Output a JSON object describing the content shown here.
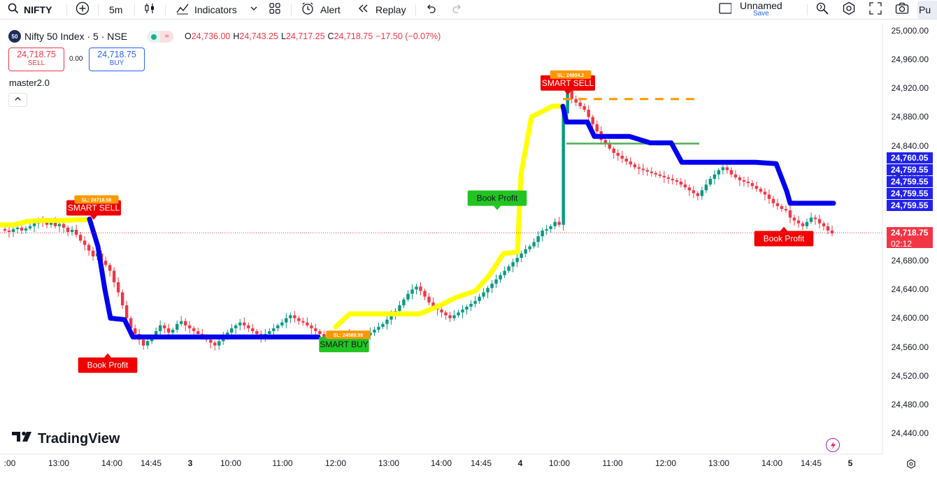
{
  "toolbar": {
    "symbol": "NIFTY",
    "interval": "5m",
    "indicators_label": "Indicators",
    "alert_label": "Alert",
    "replay_label": "Replay",
    "layout_name": "Unnamed",
    "save_label": "Save",
    "publish_label": "Pu"
  },
  "legend": {
    "badge": "50",
    "title": "Nifty 50 Index · 5 · NSE",
    "ohlc": [
      {
        "k": "O",
        "v": "24,736.00"
      },
      {
        "k": "H",
        "v": "24,743.25"
      },
      {
        "k": "L",
        "v": "24,717.25"
      },
      {
        "k": "C",
        "v": "24,718.75"
      }
    ],
    "change": "−17.50 (−0.07%)",
    "sell_price": "24,718.75",
    "sell_label": "SELL",
    "spread": "0.00",
    "buy_price": "24,718.75",
    "buy_label": "BUY",
    "indicator": "master2.0"
  },
  "brand": "TradingView",
  "colors": {
    "up": "#089981",
    "down": "#f23645",
    "trail_long": "#ffff00",
    "trail_short": "#0000ee",
    "accent": "#2962ff"
  },
  "chart_data": {
    "type": "candlestick",
    "ylim": [
      24410,
      25005
    ],
    "y_ticks": [
      "25,000.00",
      "24,960.00",
      "24,920.00",
      "24,880.00",
      "24,840.00",
      "24,800.00",
      "24,760.00",
      "24,720.00",
      "24,680.00",
      "24,640.00",
      "24,600.00",
      "24,560.00",
      "24,520.00",
      "24,480.00",
      "24,440.00"
    ],
    "y_tick_values": [
      25000,
      24960,
      24920,
      24880,
      24840,
      24800,
      24760,
      24720,
      24680,
      24640,
      24600,
      24560,
      24520,
      24480,
      24440
    ],
    "x_ticks": [
      ":00",
      "13:00",
      "14:00",
      "14:45",
      "3",
      "10:00",
      "11:00",
      "12:00",
      "13:00",
      "14:00",
      "14:45",
      "4",
      "10:00",
      "11:00",
      "12:00",
      "13:00",
      "14:00",
      "14:45",
      "5"
    ],
    "last_price": "24,718.75",
    "last_price_value": 24718.75,
    "countdown": "02:12",
    "right_labels": [
      "24,760.05",
      "24,759.55",
      "24,759.55",
      "24,759.55",
      "24,759.55"
    ],
    "right_label_values": [
      24760.05,
      24759.55,
      24759.55,
      24759.55,
      24759.55
    ],
    "close_path": [
      24722,
      24720,
      24724,
      24726,
      24722,
      24725,
      24728,
      24732,
      24736,
      24733,
      24730,
      24734,
      24728,
      24731,
      24726,
      24720,
      24723,
      24716,
      24708,
      24702,
      24694,
      24686,
      24690,
      24680,
      24674,
      24666,
      24650,
      24636,
      24618,
      24600,
      24586,
      24578,
      24570,
      24562,
      24568,
      24574,
      24582,
      24590,
      24586,
      24580,
      24584,
      24592,
      24596,
      24590,
      24586,
      24582,
      24578,
      24574,
      24570,
      24566,
      24562,
      24568,
      24574,
      24580,
      24586,
      24590,
      24594,
      24590,
      24586,
      24582,
      24578,
      24574,
      24578,
      24582,
      24586,
      24590,
      24594,
      24600,
      24604,
      24600,
      24596,
      24594,
      24590,
      24586,
      24582,
      24578,
      24574,
      24570,
      24566,
      24570,
      24574,
      24578,
      24574,
      24570,
      24566,
      24570,
      24576,
      24580,
      24584,
      24588,
      24592,
      24598,
      24604,
      24610,
      24618,
      24626,
      24634,
      24640,
      24644,
      24638,
      24630,
      24622,
      24616,
      24612,
      24608,
      24604,
      24600,
      24604,
      24608,
      24612,
      24616,
      24620,
      24624,
      24630,
      24636,
      24642,
      24648,
      24654,
      24660,
      24666,
      24672,
      24678,
      24684,
      24690,
      24696,
      24700,
      24706,
      24714,
      24722,
      24724,
      24728,
      24734,
      24730,
      24885,
      24930,
      24905,
      24900,
      24895,
      24890,
      24880,
      24870,
      24860,
      24848,
      24842,
      24836,
      24830,
      24826,
      24822,
      24818,
      24814,
      24810,
      24808,
      24806,
      24804,
      24802,
      24800,
      24798,
      24796,
      24794,
      24792,
      24790,
      24786,
      24782,
      24778,
      24774,
      24770,
      24778,
      24786,
      24794,
      24800,
      24806,
      24810,
      24806,
      24800,
      24796,
      24792,
      24790,
      24788,
      24784,
      24780,
      24776,
      24772,
      24766,
      24760,
      24756,
      24752,
      24750,
      24740,
      24736,
      24732,
      24728,
      24734,
      24740,
      24738,
      24732,
      24728,
      24722,
      24718
    ],
    "trail_long_path": [
      [
        0,
        24730
      ],
      [
        20,
        24730
      ],
      [
        40,
        24735
      ],
      [
        60,
        24736
      ],
      [
        90,
        24736
      ],
      [
        110,
        24737
      ],
      [
        128,
        24737
      ],
      [
        128,
        null
      ],
      [
        475,
        null
      ],
      [
        480,
        24588
      ],
      [
        500,
        24606
      ],
      [
        560,
        24606
      ],
      [
        600,
        24606
      ],
      [
        630,
        24618
      ],
      [
        650,
        24628
      ],
      [
        680,
        24638
      ],
      [
        700,
        24660
      ],
      [
        720,
        24690
      ],
      [
        740,
        24692
      ],
      [
        745,
        24800
      ],
      [
        760,
        24880
      ],
      [
        790,
        24895
      ],
      [
        805,
        24895
      ]
    ],
    "trail_short_path": [
      [
        128,
        24738
      ],
      [
        140,
        24700
      ],
      [
        150,
        24640
      ],
      [
        158,
        24600
      ],
      [
        178,
        24598
      ],
      [
        190,
        24574
      ],
      [
        300,
        24574
      ],
      [
        455,
        24574
      ],
      [
        455,
        null
      ],
      [
        805,
        24895
      ],
      [
        810,
        24873
      ],
      [
        840,
        24873
      ],
      [
        850,
        24853
      ],
      [
        900,
        24853
      ],
      [
        930,
        24844
      ],
      [
        960,
        24844
      ],
      [
        975,
        24817
      ],
      [
        1000,
        24817
      ],
      [
        1080,
        24817
      ],
      [
        1110,
        24815
      ],
      [
        1125,
        24777
      ],
      [
        1130,
        24760
      ],
      [
        1165,
        24760
      ],
      [
        1192,
        24760
      ]
    ],
    "levels": [
      {
        "name": "stop-line-orange",
        "color": "#ff9800",
        "value": 24905,
        "x_start": 805,
        "x_end": 995,
        "dashed": true
      },
      {
        "name": "stop-line-green",
        "color": "#4caf50",
        "value": 24843,
        "x_start": 810,
        "x_end": 1000,
        "dashed": false
      }
    ],
    "signals": [
      {
        "text": "SMART SELL",
        "type": "sell",
        "value": 24736,
        "sl": "SL: 24718.58"
      },
      {
        "text": "Book Profit",
        "type": "sell-exit",
        "value": 24560
      },
      {
        "text": "SMART BUY",
        "type": "buy",
        "value": 24575,
        "sl": "SL: 24589.98"
      },
      {
        "text": "Book Profit",
        "type": "buy-exit",
        "value": 24732
      },
      {
        "text": "SMART SELL",
        "type": "sell",
        "value": 24902,
        "sl": "SL: 24904.2"
      },
      {
        "text": "Book Profit",
        "type": "sell-exit",
        "value": 24736
      }
    ]
  }
}
